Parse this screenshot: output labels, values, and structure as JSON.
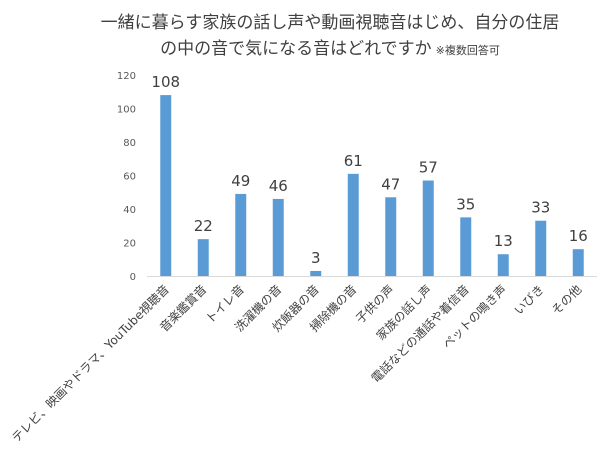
{
  "chart_data": {
    "type": "bar",
    "title_line1": "一緒に暮らす家族の話し声や動画視聴音はじめ、自分の住居",
    "title_line2": "の中の音で気になる音はどれですか",
    "title_note": "※複数回答可",
    "categories": [
      "テレビ、映画やドラマ、YouTube視聴音",
      "音楽鑑賞音",
      "トイレ音",
      "洗濯機の音",
      "炊飯器の音",
      "掃除機の音",
      "子供の声",
      "家族の話し声",
      "電話などの通話や着信音",
      "ペットの鳴き声",
      "いびき",
      "その他"
    ],
    "values": [
      108,
      22,
      49,
      46,
      3,
      61,
      47,
      57,
      35,
      13,
      33,
      16
    ],
    "ylim": [
      0,
      120
    ],
    "yticks": [
      0,
      20,
      40,
      60,
      80,
      100,
      120
    ],
    "grid": false,
    "legend": "none",
    "bar_color": "#5B9BD5"
  }
}
